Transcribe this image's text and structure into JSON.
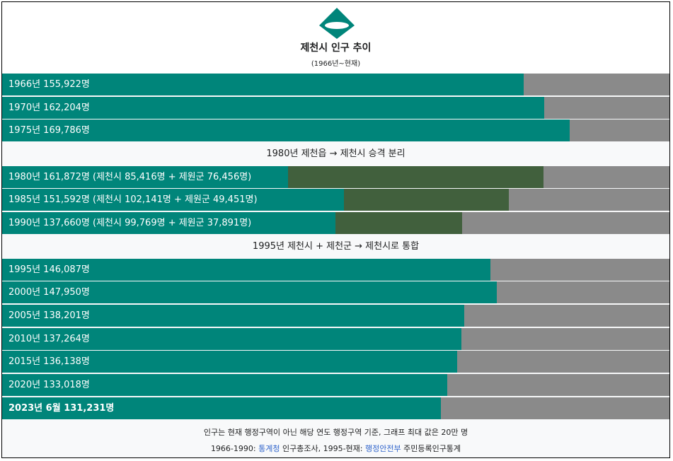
{
  "header": {
    "title": "제천시 인구 추이",
    "subtitle": "(1966년~현재)"
  },
  "chart_data": {
    "type": "bar",
    "orientation": "horizontal",
    "max": 200000,
    "rows": [
      {
        "kind": "bar",
        "label": "1966년 155,922명",
        "total": 155922
      },
      {
        "kind": "bar",
        "label": "1970년 162,204명",
        "total": 162204
      },
      {
        "kind": "bar",
        "label": "1975년 169,786명",
        "total": 169786
      },
      {
        "kind": "separator",
        "label": "1980년 제천읍 → 제천시 승격 분리"
      },
      {
        "kind": "bar",
        "label": "1980년 161,872명 (제천시 85,416명 + 제원군 76,456명)",
        "total": 161872,
        "parts": [
          85416,
          76456
        ]
      },
      {
        "kind": "bar",
        "label": "1985년 151,592명 (제천시 102,141명 + 제원군 49,451명)",
        "total": 151592,
        "parts": [
          102141,
          49451
        ]
      },
      {
        "kind": "bar",
        "label": "1990년 137,660명 (제천시 99,769명 + 제원군 37,891명)",
        "total": 137660,
        "parts": [
          99769,
          37891
        ]
      },
      {
        "kind": "separator",
        "label": "1995년 제천시 + 제천군 → 제천시로 통합"
      },
      {
        "kind": "bar",
        "label": "1995년 146,087명",
        "total": 146087
      },
      {
        "kind": "bar",
        "label": "2000년 147,950명",
        "total": 147950
      },
      {
        "kind": "bar",
        "label": "2005년 138,201명",
        "total": 138201
      },
      {
        "kind": "bar",
        "label": "2010년 137,264명",
        "total": 137264
      },
      {
        "kind": "bar",
        "label": "2015년 136,138명",
        "total": 136138
      },
      {
        "kind": "bar",
        "label": "2020년 133,018명",
        "total": 133018
      },
      {
        "kind": "bar",
        "label": "2023년 6월 131,231명",
        "total": 131231,
        "bold": true
      }
    ]
  },
  "colors": {
    "main": "#00857a",
    "sub": "#41603d",
    "track": "#8a8a8a",
    "logo": "#00857a"
  },
  "footer": {
    "note": "인구는 현재 행정구역이 아닌 해당 연도 행정구역 기준, 그래프 최대 값은 20만 명",
    "source_prefix": "1966-1990: ",
    "source_link1": "통계청",
    "source_mid": " 인구총조사, 1995-현재: ",
    "source_link2": "행정안전부",
    "source_suffix": " 주민등록인구통계"
  },
  "icons": {
    "logo": "jecheon-emblem-icon"
  }
}
